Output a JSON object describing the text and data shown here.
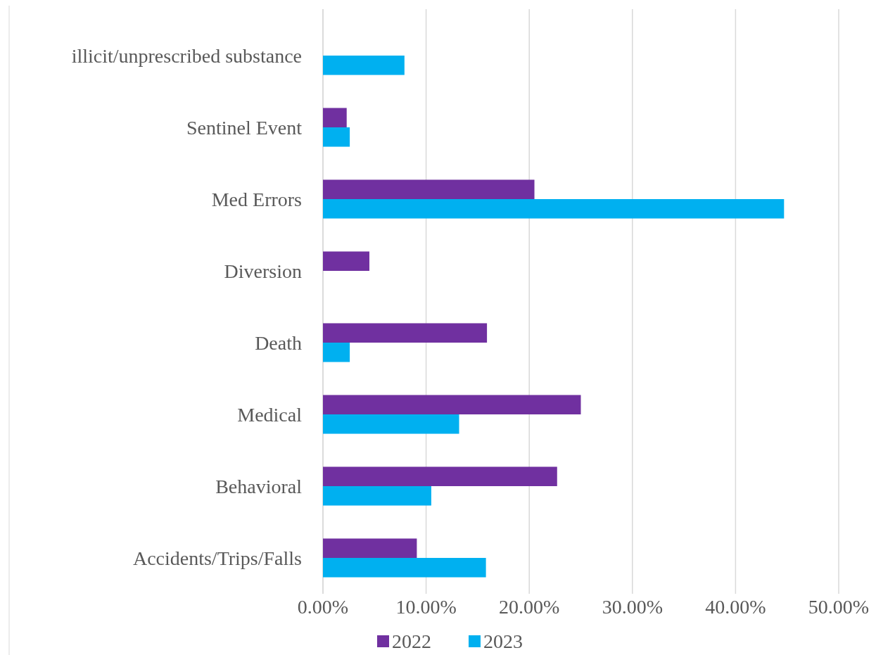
{
  "chart_data": {
    "type": "bar",
    "orientation": "horizontal",
    "categories": [
      "illicit/unprescribed substance",
      "Sentinel Event",
      "Med Errors",
      "Diversion",
      "Death",
      "Medical",
      "Behavioral",
      "Accidents/Trips/Falls"
    ],
    "series": [
      {
        "name": "2022",
        "color": "#7030a0",
        "values": [
          null,
          2.3,
          20.5,
          4.5,
          15.9,
          25.0,
          22.7,
          9.1
        ]
      },
      {
        "name": "2023",
        "color": "#00b0f0",
        "values": [
          7.9,
          2.6,
          44.7,
          null,
          2.6,
          13.2,
          10.5,
          15.8
        ]
      }
    ],
    "xlim": [
      0,
      50
    ],
    "xticks": [
      {
        "value": 0,
        "label": "0.00%"
      },
      {
        "value": 10,
        "label": "10.00%"
      },
      {
        "value": 20,
        "label": "20.00%"
      },
      {
        "value": 30,
        "label": "30.00%"
      },
      {
        "value": 40,
        "label": "40.00%"
      },
      {
        "value": 50,
        "label": "50.00%"
      }
    ],
    "grid": "x",
    "legend": "bottom"
  }
}
